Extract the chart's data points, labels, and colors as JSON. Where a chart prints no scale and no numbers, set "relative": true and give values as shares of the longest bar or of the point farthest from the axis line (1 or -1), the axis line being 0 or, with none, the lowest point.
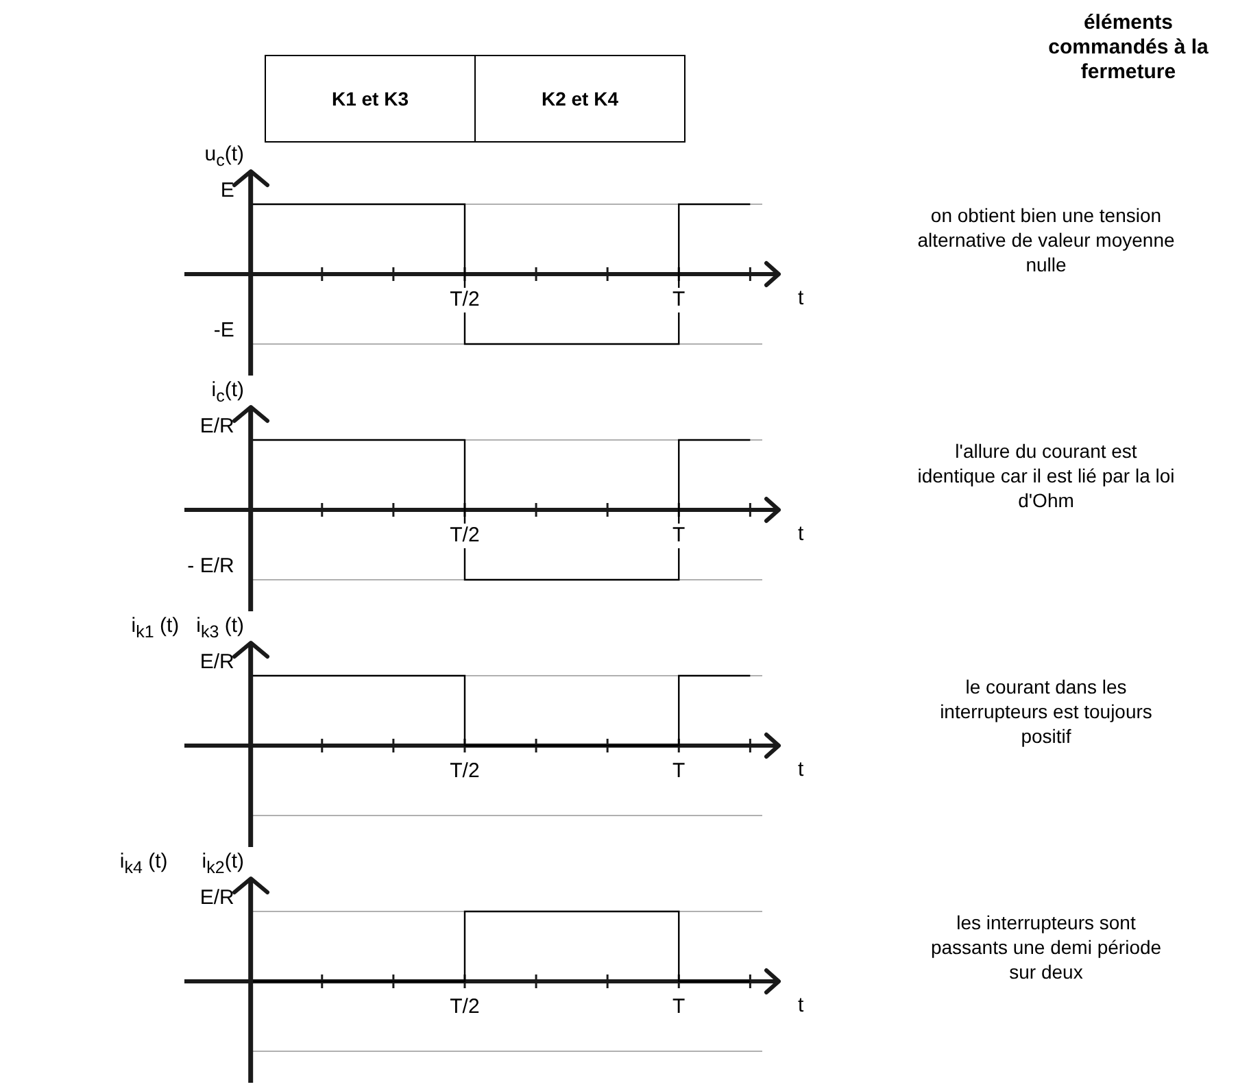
{
  "chart_data": [
    {
      "type": "other",
      "categories": [
        "K1 et K3",
        "K2 et K4"
      ],
      "title": "éléments commandés à la fermeture"
    },
    {
      "type": "step",
      "relative": true,
      "ylabel": "u$_{c}$(t)",
      "xlabel": "t",
      "categories": [
        null,
        null,
        null,
        "T/2",
        null,
        null,
        "T",
        null
      ],
      "values": [
        1,
        1,
        1,
        -1,
        -1,
        -1,
        1,
        1
      ],
      "color": "#000000",
      "ref_lines": [
        {
          "axis": "y",
          "value": 1,
          "label": "E",
          "color": "#b0b0b0"
        },
        {
          "axis": "y",
          "value": -1,
          "label": "-E",
          "color": "#b0b0b0"
        }
      ],
      "annotations": [
        "on obtient bien une tension alternative de valeur moyenne nulle"
      ]
    },
    {
      "type": "step",
      "relative": true,
      "ylabel": "i$_{c}$(t)",
      "xlabel": "t",
      "categories": [
        null,
        null,
        null,
        "T/2",
        null,
        null,
        "T",
        null
      ],
      "values": [
        1,
        1,
        1,
        -1,
        -1,
        -1,
        1,
        1
      ],
      "color": "#000000",
      "ref_lines": [
        {
          "axis": "y",
          "value": 1,
          "label": "E/R",
          "color": "#b0b0b0"
        },
        {
          "axis": "y",
          "value": -1,
          "label": "- E/R",
          "color": "#b0b0b0"
        }
      ],
      "annotations": [
        "l'allure du courant est identique car il est lié par la loi d'Ohm"
      ]
    },
    {
      "type": "step",
      "relative": true,
      "ylabel": "i$_{k1}$ (t)   i$_{k3}$ (t)",
      "xlabel": "t",
      "categories": [
        null,
        null,
        null,
        "T/2",
        null,
        null,
        "T",
        null
      ],
      "values": [
        1,
        1,
        1,
        0,
        0,
        0,
        1,
        1
      ],
      "color": "#000000",
      "ref_lines": [
        {
          "axis": "y",
          "value": 1,
          "label": "E/R",
          "color": "#b0b0b0"
        },
        {
          "axis": "y",
          "value": -1,
          "color": "#b0b0b0"
        }
      ],
      "annotations": [
        "le courant dans les interrupteurs est toujours positif"
      ]
    },
    {
      "type": "step",
      "relative": true,
      "ylabel": "i$_{k4}$ (t)      i$_{k2}$(t)",
      "xlabel": "t",
      "categories": [
        null,
        null,
        null,
        "T/2",
        null,
        null,
        "T",
        null
      ],
      "values": [
        0,
        0,
        0,
        1,
        1,
        1,
        0,
        0
      ],
      "color": "#000000",
      "ref_lines": [
        {
          "axis": "y",
          "value": 1,
          "label": "E/R",
          "color": "#b0b0b0"
        },
        {
          "axis": "y",
          "value": -1,
          "color": "#b0b0b0"
        }
      ],
      "annotations": [
        "les interrupteurs sont passants une demi période sur deux"
      ]
    }
  ]
}
